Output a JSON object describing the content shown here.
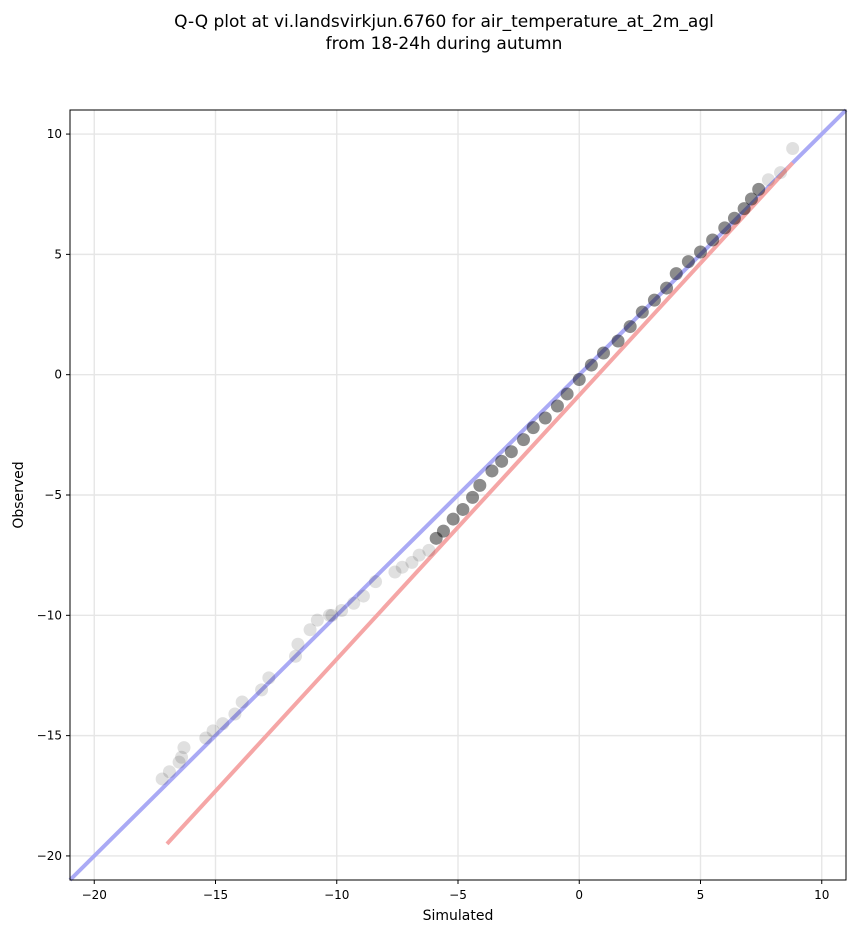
{
  "chart_data": {
    "type": "scatter",
    "title_lines": [
      "Q-Q plot at vi.landsvirkjun.6760 for air_temperature_at_2m_agl",
      "from 18-24h during autumn"
    ],
    "xlabel": "Simulated",
    "ylabel": "Observed",
    "xlim": [
      -21,
      11
    ],
    "ylim": [
      -21,
      11
    ],
    "xticks": [
      -20,
      -15,
      -10,
      -5,
      0,
      5,
      10
    ],
    "yticks": [
      -20,
      -15,
      -10,
      -5,
      0,
      5,
      10
    ],
    "xtick_labels": [
      "−20",
      "−15",
      "−10",
      "−5",
      "0",
      "5",
      "10"
    ],
    "ytick_labels": [
      "−20",
      "−15",
      "−10",
      "−5",
      "0",
      "5",
      "10"
    ],
    "grid": true,
    "reference_lines": [
      {
        "role": "identity",
        "color": "#aaaaf5",
        "x": [
          -21,
          11
        ],
        "y": [
          -21,
          11
        ]
      },
      {
        "role": "fit",
        "color": "#f5a6a6",
        "x": [
          -17.0,
          8.8
        ],
        "y": [
          -19.5,
          8.8
        ]
      }
    ],
    "colors": {
      "points": "#000000",
      "identity_line": "#aaaaf5",
      "fit_line": "#f5a6a6"
    },
    "series": [
      {
        "x": [
          -17.2,
          -16.9,
          -16.5,
          -16.4,
          -16.3,
          -15.4,
          -15.1,
          -14.7,
          -14.2,
          -13.9,
          -13.1,
          -12.8,
          -11.7,
          -11.6,
          -11.1,
          -10.8,
          -10.3,
          -10.2,
          -9.8,
          -9.3,
          -8.9,
          -8.4,
          -7.6,
          -7.3,
          -6.9,
          -6.6,
          -6.2,
          -5.9,
          -5.6,
          -5.2,
          -4.8,
          -4.4,
          -4.1,
          -3.6,
          -3.2,
          -2.8,
          -2.3,
          -1.9,
          -1.4,
          -0.9,
          -0.5,
          0.0,
          0.5,
          1.0,
          1.6,
          2.1,
          2.6,
          3.1,
          3.6,
          4.0,
          4.5,
          5.0,
          5.5,
          6.0,
          6.4,
          6.8,
          7.1,
          7.4,
          7.8,
          8.3,
          8.8
        ],
        "y": [
          -16.8,
          -16.5,
          -16.1,
          -15.9,
          -15.5,
          -15.1,
          -14.8,
          -14.5,
          -14.1,
          -13.6,
          -13.1,
          -12.6,
          -11.7,
          -11.2,
          -10.6,
          -10.2,
          -10.0,
          -10.0,
          -9.8,
          -9.5,
          -9.2,
          -8.6,
          -8.2,
          -8.0,
          -7.8,
          -7.5,
          -7.3,
          -6.8,
          -6.5,
          -6.0,
          -5.6,
          -5.1,
          -4.6,
          -4.0,
          -3.6,
          -3.2,
          -2.7,
          -2.2,
          -1.8,
          -1.3,
          -0.8,
          -0.2,
          0.4,
          0.9,
          1.4,
          2.0,
          2.6,
          3.1,
          3.6,
          4.2,
          4.7,
          5.1,
          5.6,
          6.1,
          6.5,
          6.9,
          7.3,
          7.7,
          8.1,
          8.4,
          9.4
        ]
      }
    ]
  }
}
